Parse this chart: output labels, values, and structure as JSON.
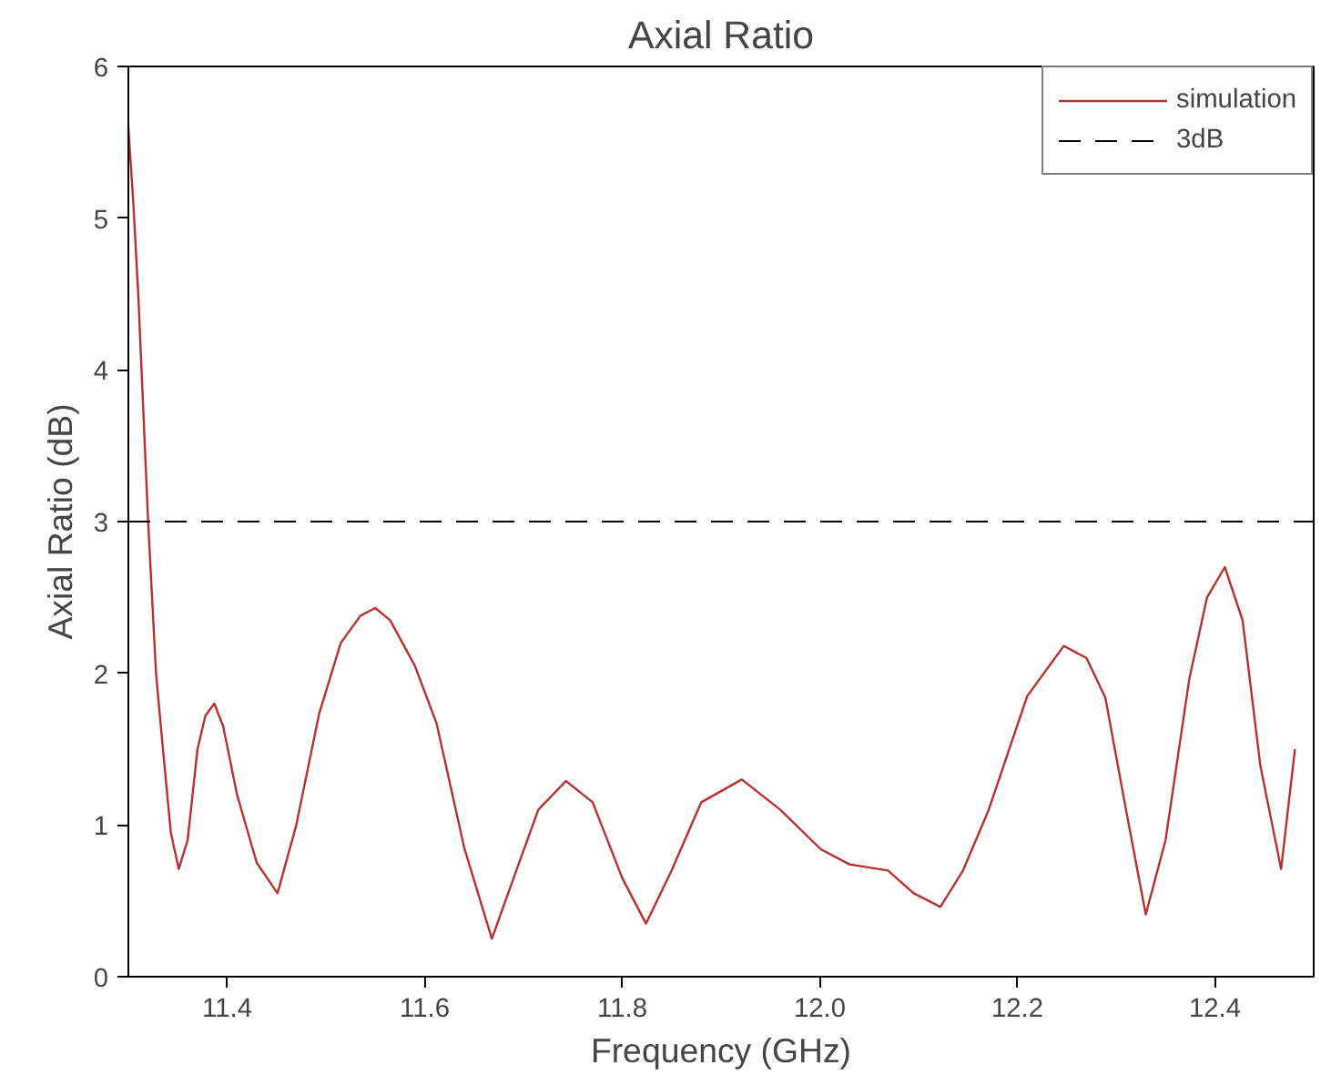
{
  "chart_data": {
    "type": "line",
    "title": "Axial Ratio",
    "xlabel": "Frequency (GHz)",
    "ylabel": "Axial Ratio (dB)",
    "xlim": [
      11.3,
      12.5
    ],
    "xticks": [
      11.4,
      11.6,
      11.8,
      {
        "value": 12.0,
        "label": "12.0"
      },
      12.2,
      12.4
    ],
    "ylim": [
      0,
      6
    ],
    "yticks": [
      0,
      1,
      2,
      3,
      4,
      5,
      6
    ],
    "grid": false,
    "legend": "top right",
    "line_style": "solid",
    "marker": "none",
    "series": [
      {
        "name": "simulation",
        "color": "#b8312f",
        "x": [
          11.3,
          11.305,
          11.31,
          11.32,
          11.328,
          11.335,
          11.343,
          11.351,
          11.36,
          11.37,
          11.378,
          11.387,
          11.396,
          11.41,
          11.43,
          11.451,
          11.47,
          11.493,
          11.515,
          11.535,
          11.55,
          11.565,
          11.59,
          11.612,
          11.64,
          11.668,
          11.69,
          11.715,
          11.743,
          11.77,
          11.8,
          11.824,
          11.85,
          11.88,
          11.921,
          11.96,
          12.001,
          12.03,
          12.069,
          12.095,
          12.122,
          12.145,
          12.171,
          12.21,
          12.247,
          12.27,
          12.289,
          12.31,
          12.33,
          12.35,
          12.374,
          12.392,
          12.41,
          12.428,
          12.446,
          12.467,
          12.481
        ],
        "values": [
          5.6,
          5.1,
          4.5,
          3.0,
          2.0,
          1.5,
          0.95,
          0.71,
          0.9,
          1.5,
          1.72,
          1.8,
          1.65,
          1.2,
          0.75,
          0.55,
          1.0,
          1.73,
          2.2,
          2.38,
          2.43,
          2.35,
          2.05,
          1.67,
          0.85,
          0.25,
          0.65,
          1.1,
          1.29,
          1.15,
          0.65,
          0.35,
          0.7,
          1.15,
          1.3,
          1.1,
          0.84,
          0.74,
          0.7,
          0.55,
          0.46,
          0.7,
          1.1,
          1.85,
          2.18,
          2.1,
          1.84,
          1.1,
          0.41,
          0.9,
          1.96,
          2.5,
          2.7,
          2.35,
          1.39,
          0.71,
          1.5
        ]
      }
    ],
    "ref_lines": [
      {
        "axis": "y",
        "value": 3,
        "label": "3dB",
        "color": "#000000",
        "line_style": "dashed"
      }
    ]
  }
}
